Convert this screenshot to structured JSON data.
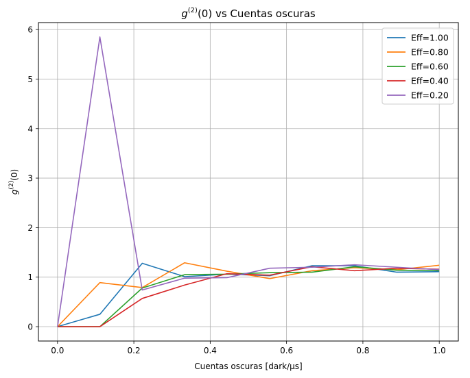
{
  "chart_data": {
    "type": "line",
    "title": {
      "italic": "g",
      "sup": "(2)",
      "rest": "(0) vs Cuentas oscuras"
    },
    "xlabel": "Cuentas oscuras [dark/μs]",
    "ylabel": {
      "italic": "g",
      "sup": "(2)",
      "rest": "(0)"
    },
    "xlim": [
      -0.05,
      1.05
    ],
    "ylim": [
      -0.29,
      6.14
    ],
    "xticks": [
      0.0,
      0.2,
      0.4,
      0.6,
      0.8,
      1.0
    ],
    "xtick_labels": [
      "0.0",
      "0.2",
      "0.4",
      "0.6",
      "0.8",
      "1.0"
    ],
    "yticks": [
      0,
      1,
      2,
      3,
      4,
      5,
      6
    ],
    "ytick_labels": [
      "0",
      "1",
      "2",
      "3",
      "4",
      "5",
      "6"
    ],
    "grid": true,
    "legend_position": "top-right",
    "x": [
      0.0,
      0.111,
      0.222,
      0.333,
      0.444,
      0.556,
      0.667,
      0.778,
      0.889,
      1.0
    ],
    "series": [
      {
        "name": "Eff=1.00",
        "color": "#1f77b4",
        "values": [
          0.0,
          0.25,
          1.28,
          1.01,
          1.06,
          1.03,
          1.23,
          1.23,
          1.1,
          1.11
        ]
      },
      {
        "name": "Eff=0.80",
        "color": "#ff7f0e",
        "values": [
          0.0,
          0.89,
          0.79,
          1.29,
          1.12,
          0.97,
          1.13,
          1.19,
          1.15,
          1.24
        ]
      },
      {
        "name": "Eff=0.60",
        "color": "#2ca02c",
        "values": [
          0.0,
          0.0,
          0.78,
          1.05,
          1.06,
          1.09,
          1.1,
          1.21,
          1.14,
          1.13
        ]
      },
      {
        "name": "Eff=0.40",
        "color": "#d62728",
        "values": [
          0.0,
          0.0,
          0.57,
          0.84,
          1.07,
          1.04,
          1.21,
          1.13,
          1.18,
          1.16
        ]
      },
      {
        "name": "Eff=0.20",
        "color": "#9467bd",
        "values": [
          0.0,
          5.85,
          0.74,
          0.98,
          0.99,
          1.18,
          1.2,
          1.25,
          1.2,
          1.15
        ]
      }
    ]
  }
}
